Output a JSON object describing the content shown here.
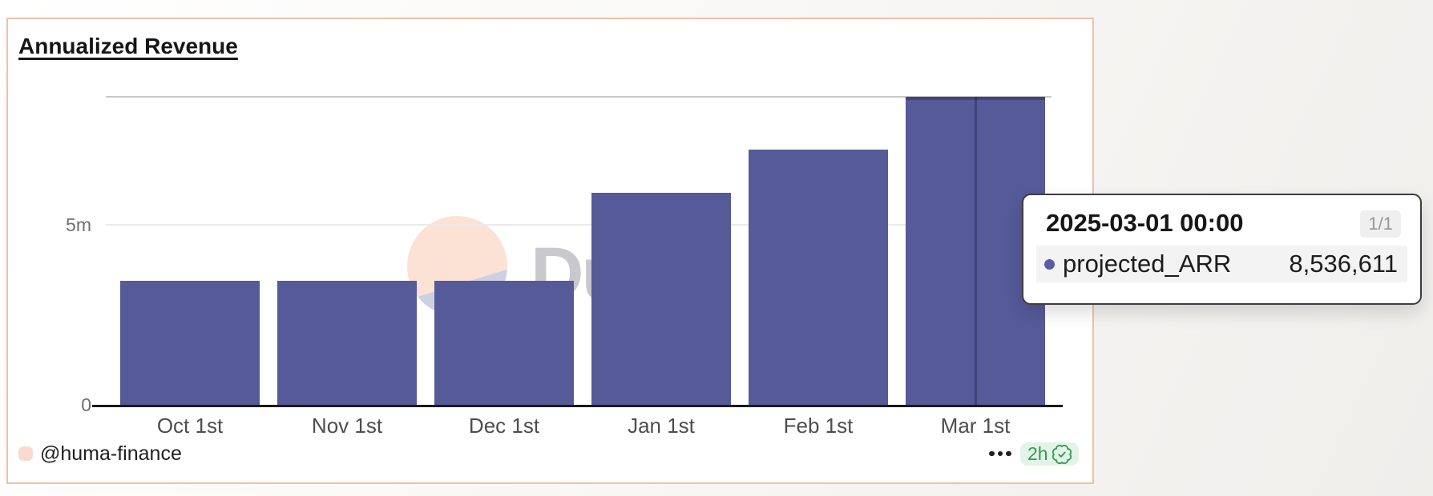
{
  "card": {
    "title": "Annualized Revenue",
    "watermark": "Dune",
    "footer": {
      "author": "@huma-finance",
      "menu_label": "•••",
      "age_badge": "2h"
    }
  },
  "chart_data": {
    "type": "bar",
    "title": "Annualized Revenue",
    "series_name": "projected_ARR",
    "categories": [
      "Oct 1st",
      "Nov 1st",
      "Dec 1st",
      "Jan 1st",
      "Feb 1st",
      "Mar 1st"
    ],
    "values": [
      3440000,
      3440000,
      3440000,
      5870000,
      7080000,
      8536611
    ],
    "y_ticks": [
      {
        "value": 0,
        "label": "0"
      },
      {
        "value": 5000000,
        "label": "5m"
      }
    ],
    "ylim": [
      0,
      8536611
    ],
    "grid": true,
    "legend": false,
    "hovered_index": 5,
    "hovered_value_exact": "8,536,611"
  },
  "tooltip": {
    "title": "2025-03-01 00:00",
    "page_indicator": "1/1",
    "rows": [
      {
        "name": "projected_ARR",
        "value": "8,536,611",
        "color": "#575BA8"
      }
    ]
  },
  "colors": {
    "bar": "#555A99",
    "hover_line": "rgba(15,15,35,0.30)",
    "gridline_top": "#c9c9c9",
    "gridline": "#eaeaea",
    "axis": "#1a1a1a",
    "card_border": "#F0C1A6",
    "green": "#2E9E4F",
    "green_bg": "#E4F3E7",
    "avatar_pink": "#FAD9D1",
    "watermark_peach": "#FADECF",
    "watermark_lavender": "#C4CBE7"
  }
}
